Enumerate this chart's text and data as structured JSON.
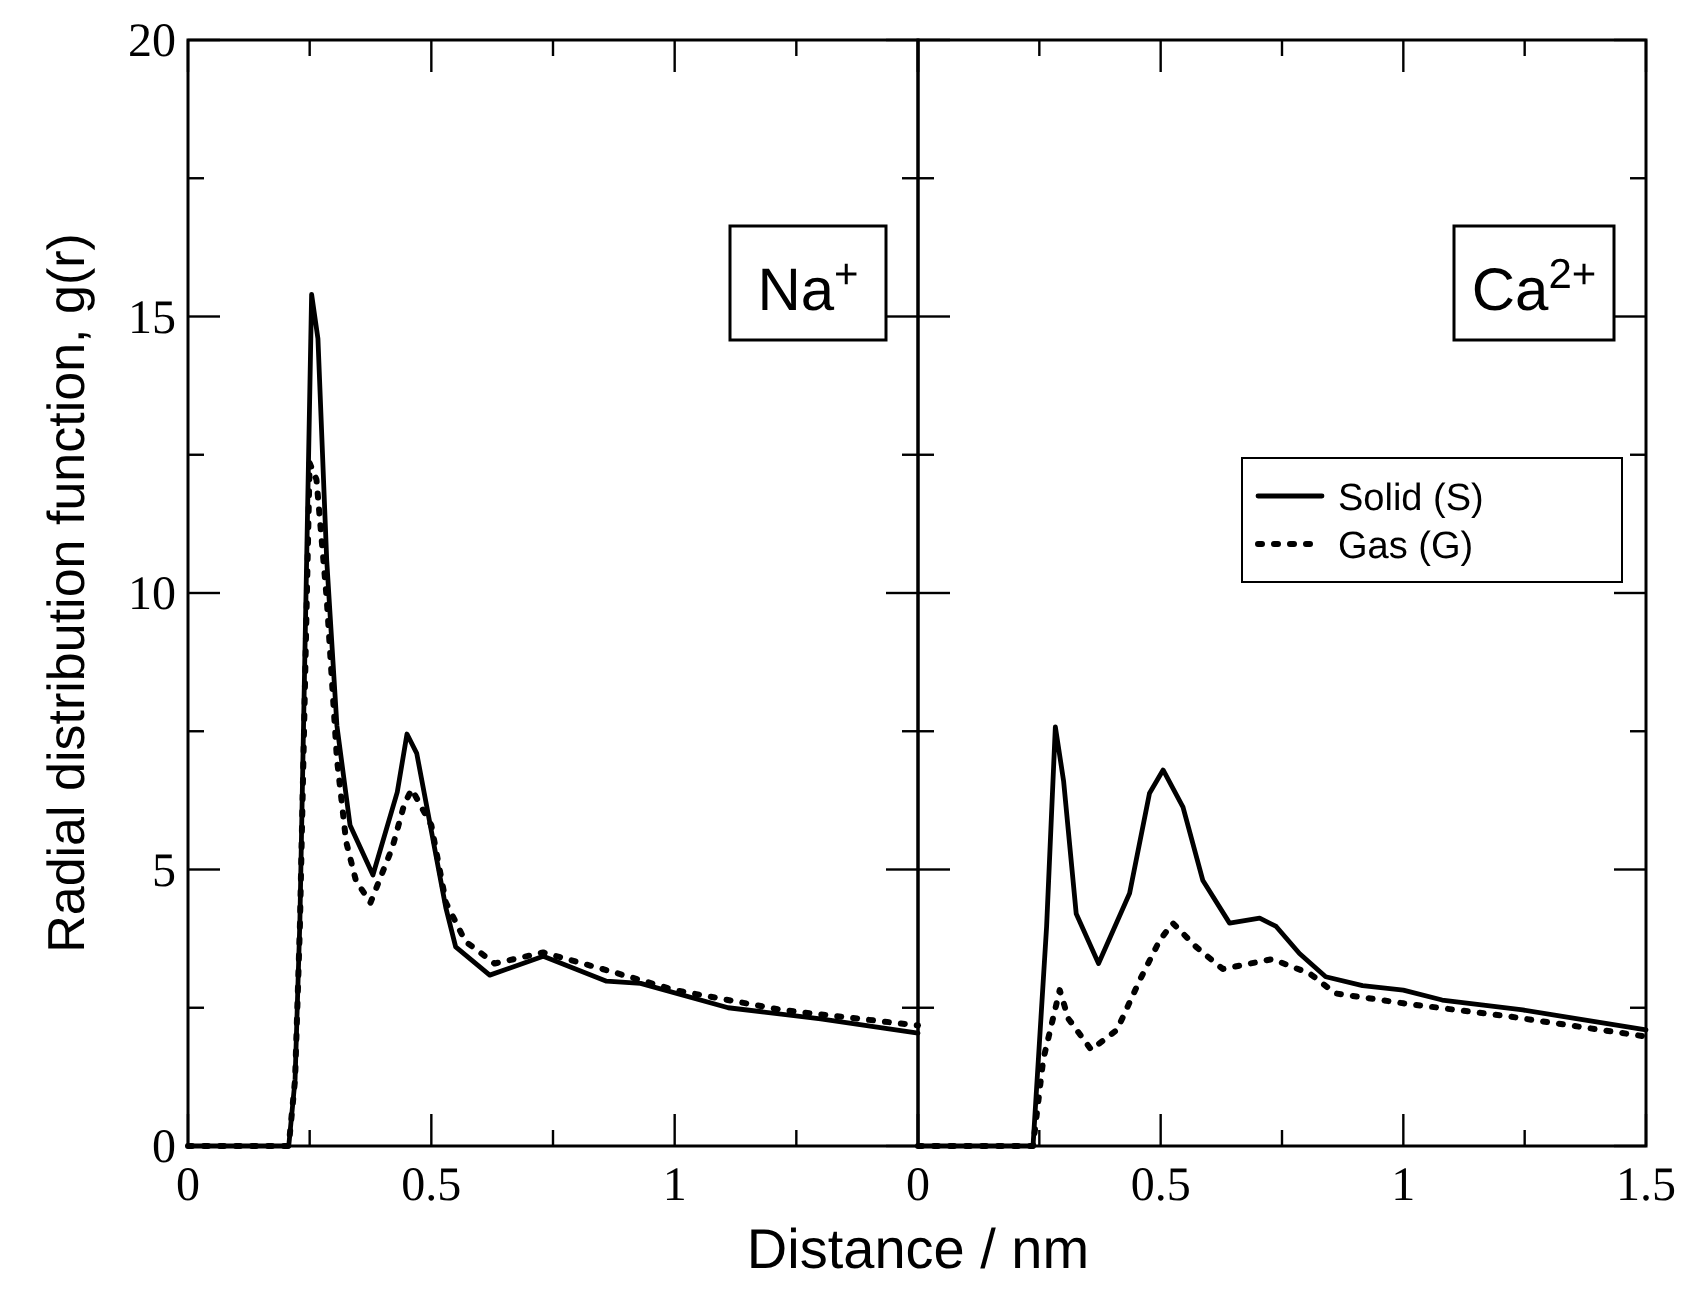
{
  "chart_data": [
    {
      "type": "line",
      "ylabel": "Radial distribution function, g(r)",
      "xlabel": "Distance / nm",
      "annotations": [
        "Na$^{+}$"
      ],
      "xlim": [
        0,
        1.5
      ],
      "ylim": [
        0,
        20
      ],
      "xticks": [
        0,
        {
          "value": 0.25,
          "label": null
        },
        0.5,
        {
          "value": 0.75,
          "label": null
        },
        1,
        {
          "value": 1.25,
          "label": null
        },
        {
          "value": 1.5,
          "label": null
        }
      ],
      "yticks": [
        0,
        {
          "value": 2.5,
          "label": null
        },
        5,
        {
          "value": 7.5,
          "label": null
        },
        10,
        {
          "value": 12.5,
          "label": null
        },
        15,
        {
          "value": 17.5,
          "label": null
        },
        20
      ],
      "series": [
        {
          "color": "#000000",
          "line_style": "solid",
          "x": [
            0,
            0.1,
            0.207,
            0.22,
            0.23,
            0.254,
            0.267,
            0.285,
            0.306,
            0.333,
            0.38,
            0.43,
            0.45,
            0.47,
            0.53,
            0.55,
            0.62,
            0.73,
            0.86,
            0.93,
            1.11,
            1.3,
            1.5
          ],
          "values": [
            0,
            0,
            0,
            1.2,
            4.1,
            15.4,
            14.6,
            10.6,
            7.6,
            5.8,
            4.9,
            6.4,
            7.45,
            7.1,
            4.3,
            3.6,
            3.09,
            3.43,
            2.98,
            2.94,
            2.5,
            2.3,
            2.04
          ]
        },
        {
          "color": "#000000",
          "line_style": "dotted",
          "x": [
            0,
            0.1,
            0.207,
            0.22,
            0.23,
            0.25,
            0.264,
            0.285,
            0.306,
            0.325,
            0.345,
            0.375,
            0.42,
            0.445,
            0.46,
            0.5,
            0.53,
            0.57,
            0.63,
            0.73,
            0.86,
            1.0,
            1.22,
            1.5
          ],
          "values": [
            0,
            0,
            0,
            1.2,
            4.0,
            12.35,
            12.05,
            9.9,
            7,
            5.5,
            4.8,
            4.4,
            5.4,
            6.2,
            6.45,
            5.8,
            4.4,
            3.7,
            3.3,
            3.5,
            3.18,
            2.82,
            2.46,
            2.18
          ]
        }
      ]
    },
    {
      "type": "line",
      "annotations": [
        "Ca$^{2+}$"
      ],
      "legend": "top right",
      "tick_labels": "x",
      "xlim": [
        0,
        1.5
      ],
      "ylim": [
        0,
        20
      ],
      "xticks": [
        0,
        {
          "value": 0.25,
          "label": null
        },
        0.5,
        {
          "value": 0.75,
          "label": null
        },
        1,
        {
          "value": 1.25,
          "label": null
        },
        1.5
      ],
      "yticks": [
        0,
        {
          "value": 2.5,
          "label": null
        },
        5,
        {
          "value": 7.5,
          "label": null
        },
        10,
        {
          "value": 12.5,
          "label": null
        },
        15,
        {
          "value": 17.5,
          "label": null
        },
        20
      ],
      "series": [
        {
          "name": "Solid (S)",
          "color": "#000000",
          "line_style": "solid",
          "x": [
            0,
            0.1,
            0.237,
            0.265,
            0.283,
            0.3,
            0.326,
            0.372,
            0.436,
            0.477,
            0.505,
            0.546,
            0.587,
            0.642,
            0.704,
            0.738,
            0.786,
            0.84,
            0.916,
            1.0,
            1.08,
            1.246,
            1.5
          ],
          "values": [
            0,
            0,
            0,
            3.97,
            7.58,
            6.6,
            4.2,
            3.3,
            4.57,
            6.38,
            6.8,
            6.13,
            4.8,
            4.03,
            4.12,
            3.97,
            3.48,
            3.06,
            2.9,
            2.82,
            2.64,
            2.46,
            2.1
          ]
        },
        {
          "name": "Gas (G)",
          "color": "#000000",
          "line_style": "dotted",
          "x": [
            0,
            0.1,
            0.237,
            0.258,
            0.292,
            0.31,
            0.357,
            0.41,
            0.457,
            0.498,
            0.525,
            0.573,
            0.628,
            0.73,
            0.807,
            0.86,
            1.0,
            1.22,
            1.5
          ],
          "values": [
            0,
            0,
            0,
            1.56,
            2.82,
            2.3,
            1.74,
            2.1,
            3.0,
            3.72,
            4.03,
            3.6,
            3.2,
            3.38,
            3.12,
            2.76,
            2.58,
            2.34,
            1.98
          ]
        }
      ]
    }
  ]
}
